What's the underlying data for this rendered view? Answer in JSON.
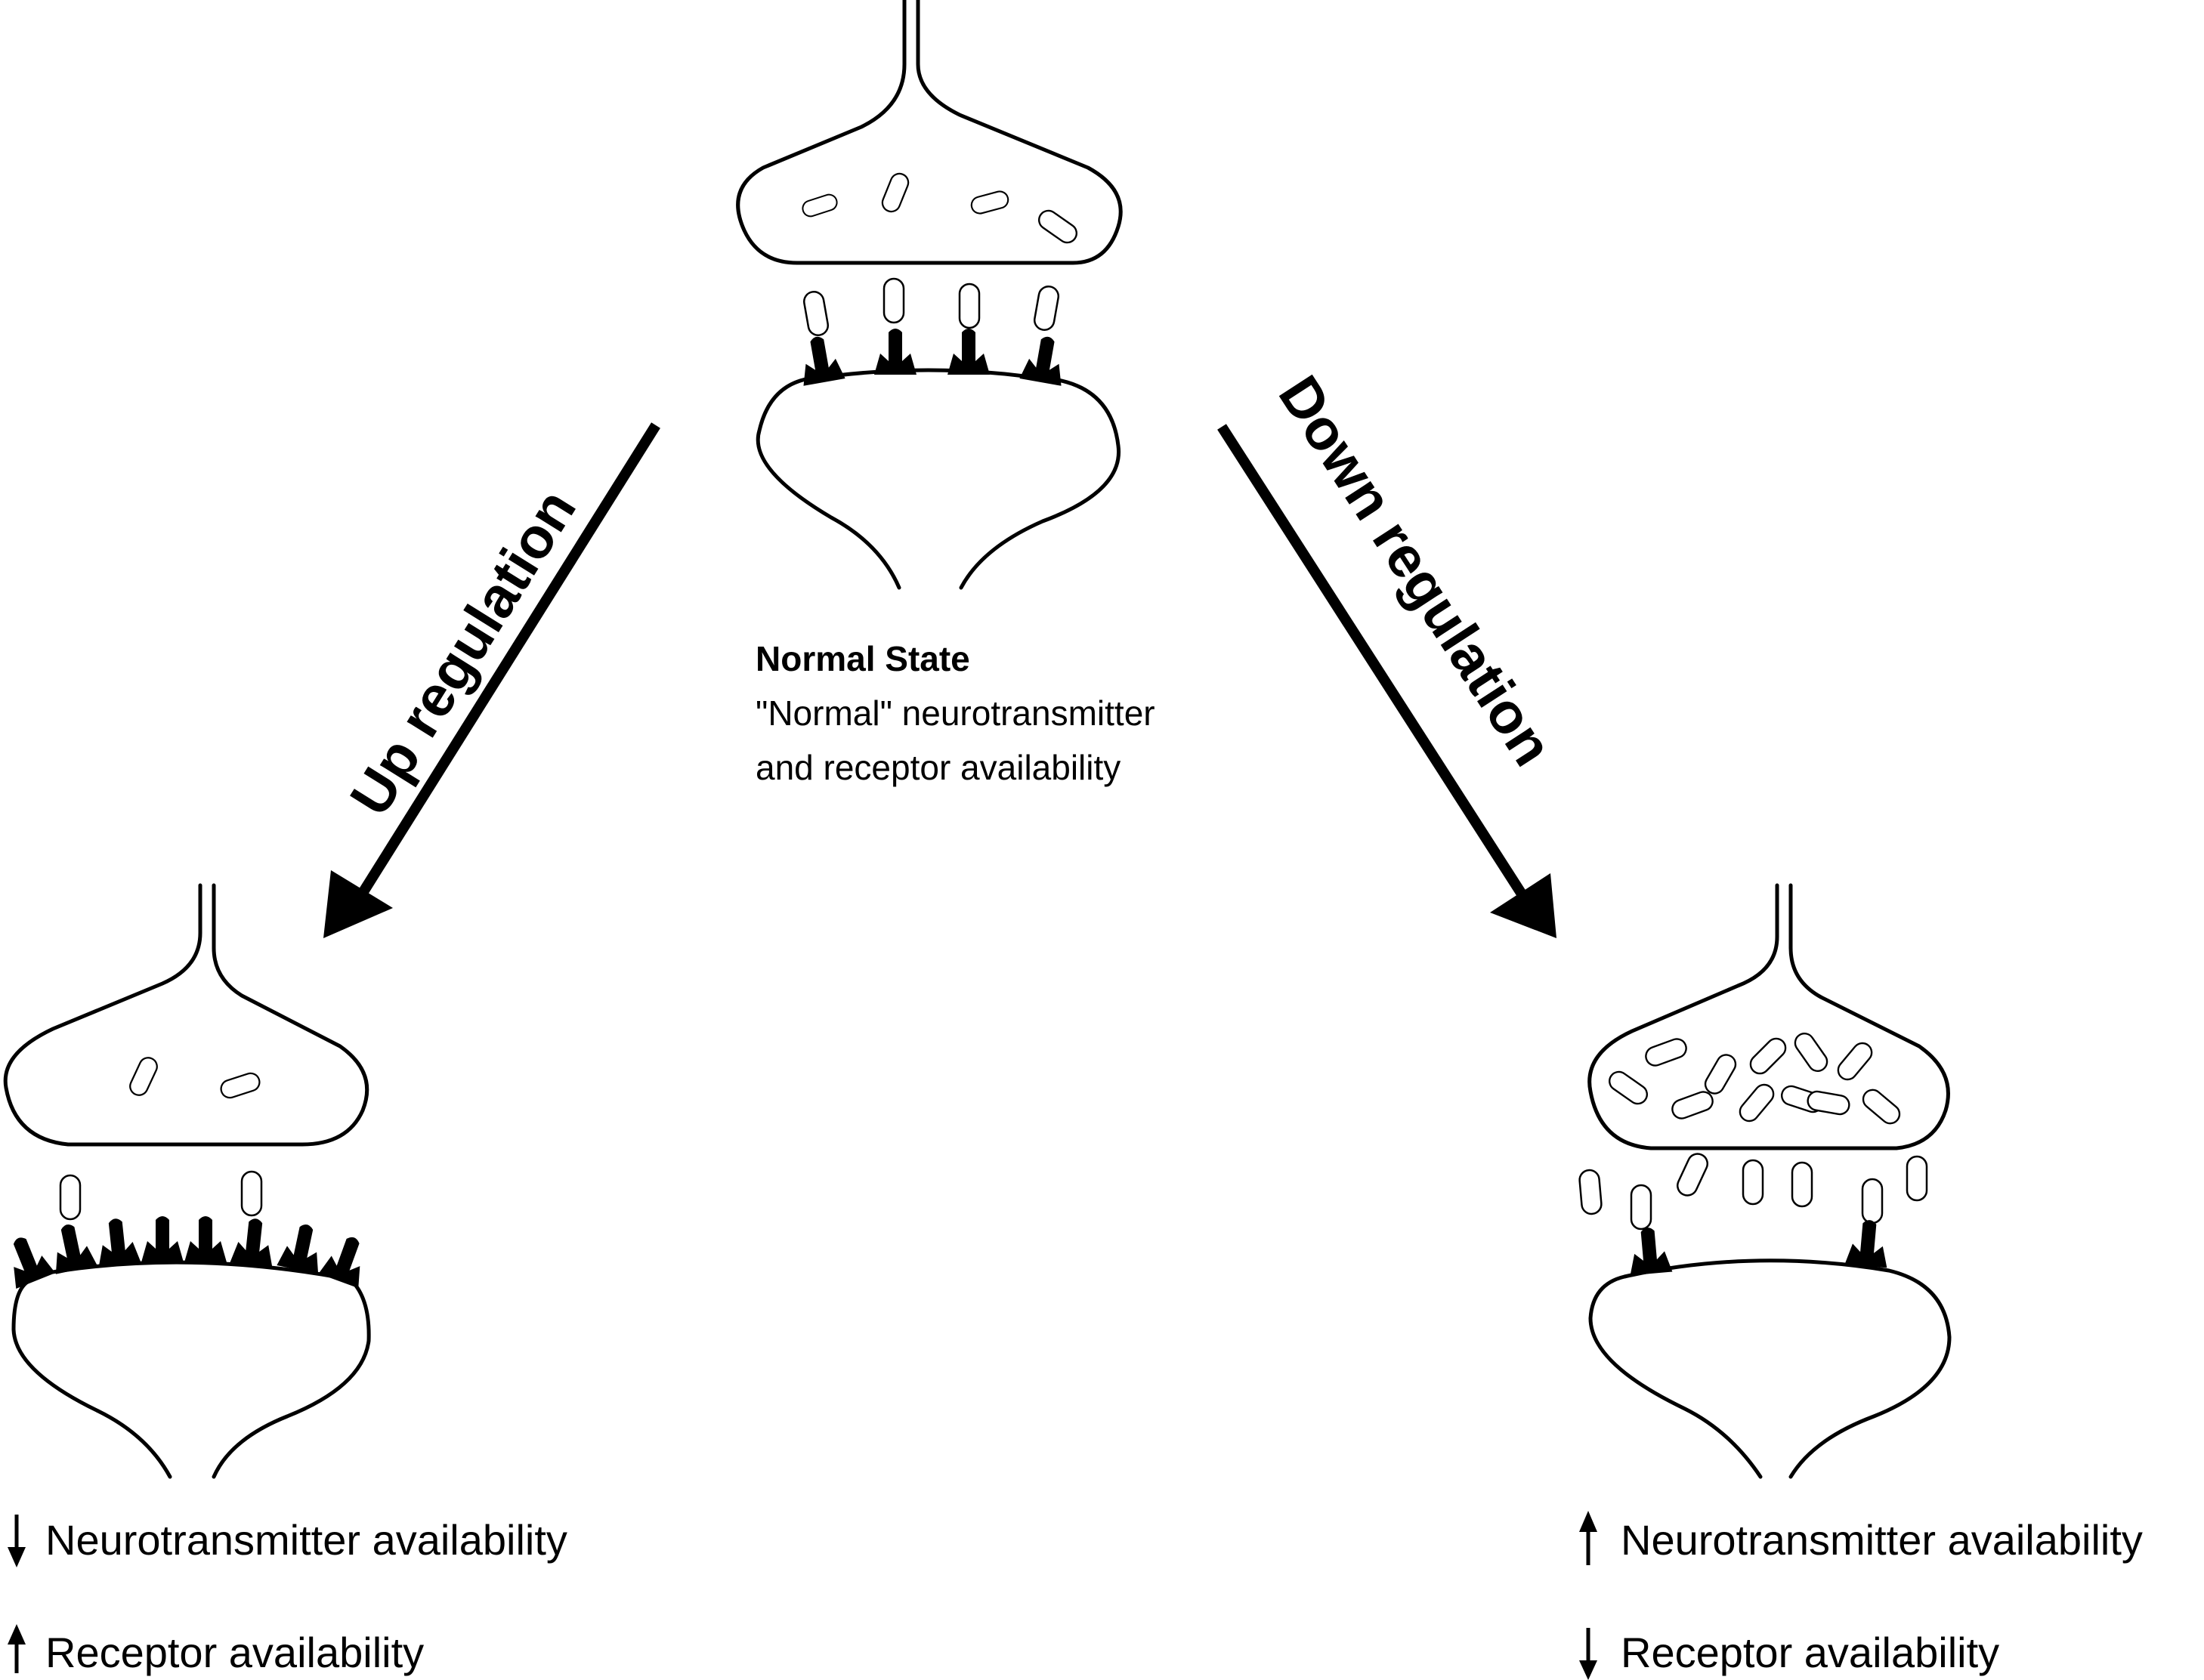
{
  "normal_state": {
    "title": "Normal State",
    "line1": "\"Normal\" neurotransmitter",
    "line2": "and receptor availability"
  },
  "arrows": {
    "up": "Up regulation",
    "down": "Down regulation"
  },
  "up_state": {
    "neurotransmitter": "Neurotransmitter availability",
    "neurotransmitter_direction": "down",
    "receptor": "Receptor availability",
    "receptor_direction": "up"
  },
  "down_state": {
    "neurotransmitter": "Neurotransmitter availability",
    "neurotransmitter_direction": "up",
    "receptor": "Receptor availability",
    "receptor_direction": "down"
  },
  "colors": {
    "ink": "#000000",
    "background": "#ffffff"
  }
}
